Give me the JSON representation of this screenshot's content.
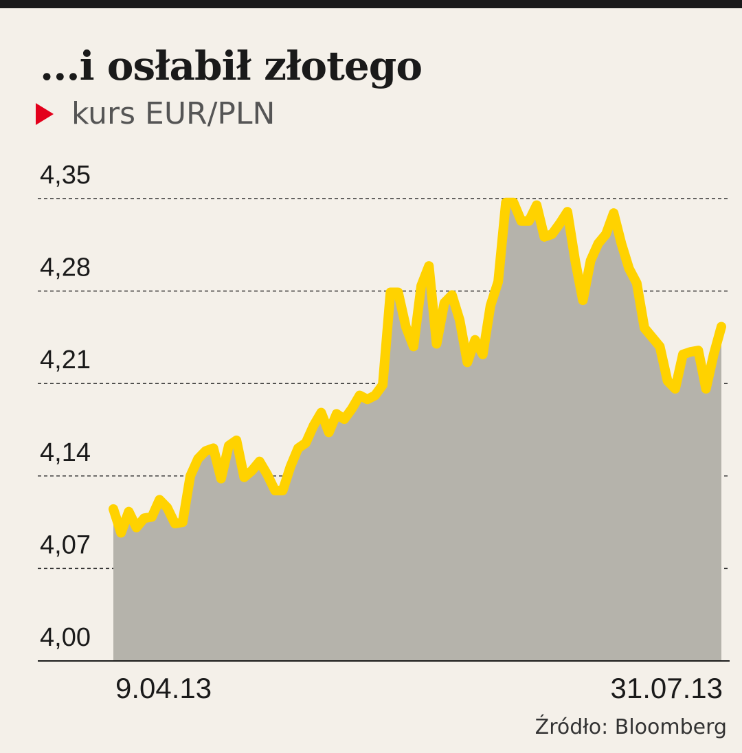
{
  "chart_data": {
    "type": "area",
    "title": "...i osłabił złotego",
    "subtitle": "kurs EUR/PLN",
    "ylim": [
      4.0,
      4.35
    ],
    "y_ticks": [
      "4,00",
      "4,07",
      "4,14",
      "4,21",
      "4,28",
      "4,35"
    ],
    "y_tick_values": [
      4.0,
      4.07,
      4.14,
      4.21,
      4.28,
      4.35
    ],
    "x_labels": {
      "start": "9.04.13",
      "end": "31.07.13"
    },
    "source": "Źródło: Bloomberg",
    "grid": true,
    "line_color": "#ffd200",
    "fill_color": "#b5b3ab",
    "accent_color": "#e3001b",
    "values": [
      4.115,
      4.097,
      4.113,
      4.101,
      4.108,
      4.109,
      4.122,
      4.116,
      4.104,
      4.105,
      4.14,
      4.153,
      4.159,
      4.161,
      4.138,
      4.163,
      4.167,
      4.139,
      4.144,
      4.151,
      4.141,
      4.129,
      4.129,
      4.147,
      4.161,
      4.165,
      4.178,
      4.188,
      4.173,
      4.187,
      4.183,
      4.191,
      4.201,
      4.198,
      4.201,
      4.209,
      4.279,
      4.279,
      4.253,
      4.238,
      4.284,
      4.299,
      4.24,
      4.271,
      4.277,
      4.258,
      4.226,
      4.243,
      4.232,
      4.269,
      4.287,
      4.347,
      4.347,
      4.333,
      4.333,
      4.345,
      4.321,
      4.323,
      4.331,
      4.34,
      4.303,
      4.273,
      4.303,
      4.316,
      4.323,
      4.339,
      4.316,
      4.297,
      4.286,
      4.252,
      4.245,
      4.238,
      4.212,
      4.206,
      4.232,
      4.234,
      4.235,
      4.206,
      4.232,
      4.253
    ]
  }
}
